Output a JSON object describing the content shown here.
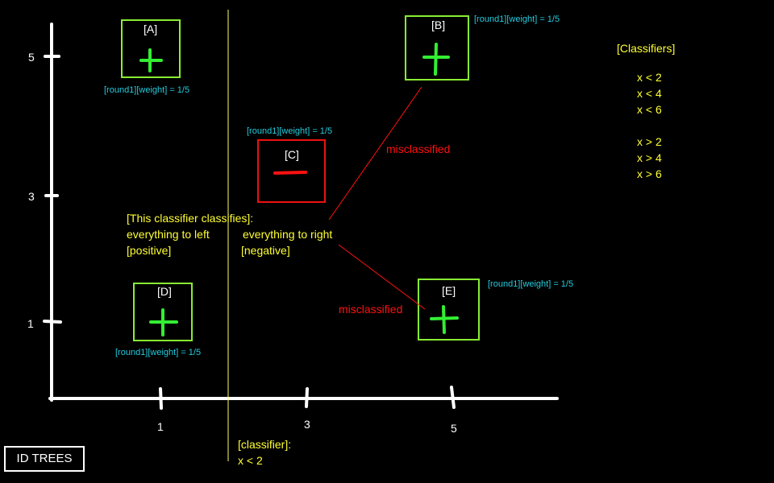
{
  "colors": {
    "background": "#000000",
    "axis": "#ffffff",
    "positive": "#33ee33",
    "negative": "#ff1111",
    "box_positive": "#88ee33",
    "box_negative": "#ee1111",
    "annotation": "#ffff33",
    "weight_text": "#22ccdd",
    "misclassified": "#ff1111"
  },
  "axes": {
    "x_ticks": [
      "1",
      "3",
      "5"
    ],
    "y_ticks": [
      "5",
      "3",
      "1"
    ]
  },
  "points": {
    "A": {
      "label": "[A]",
      "sign": "+",
      "weight": "[round1][weight] = 1/5",
      "x": 1,
      "y": 5
    },
    "B": {
      "label": "[B]",
      "sign": "+",
      "weight": "[round1][weight] = 1/5",
      "x": 5,
      "y": 5
    },
    "C": {
      "label": "[C]",
      "sign": "-",
      "weight": "[round1][weight] = 1/5",
      "x": 3,
      "y": 3.5
    },
    "D": {
      "label": "[D]",
      "sign": "+",
      "weight": "[round1][weight] = 1/5",
      "x": 1,
      "y": 1
    },
    "E": {
      "label": "[E]",
      "sign": "+",
      "weight": "[round1][weight] = 1/5",
      "x": 5,
      "y": 1
    }
  },
  "classifier_note": {
    "line1": "[This classifier classifies]:",
    "left_line1": "everything to left",
    "left_line2": "[positive]",
    "right_line1": "everything to right",
    "right_line2": "[negative]"
  },
  "misclassified": {
    "upper": "misclassified",
    "lower": "misclassified"
  },
  "current_classifier": {
    "heading": "[classifier]:",
    "rule": "x < 2"
  },
  "classifiers": {
    "heading": "[Classifiers]",
    "less_than": [
      "x < 2",
      "x < 4",
      "x < 6"
    ],
    "greater_than": [
      "x > 2",
      "x > 4",
      "x > 6"
    ]
  },
  "footer": {
    "id_trees": "ID TREES"
  }
}
